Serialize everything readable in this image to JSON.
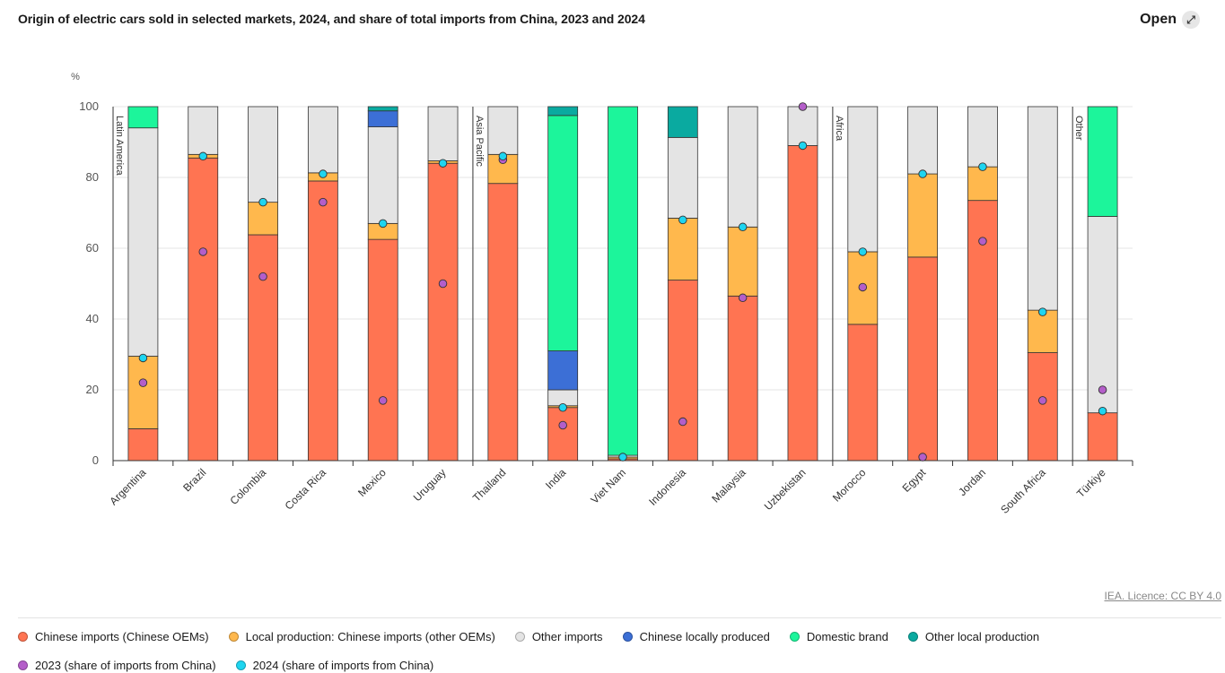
{
  "title": "Origin of electric cars sold in selected markets, 2024, and share of total imports from China, 2023 and 2024",
  "open_label": "Open",
  "open_icon": "expand-icon",
  "licence": "IEA. Licence: CC BY 4.0",
  "legend": [
    {
      "label": "Chinese imports (Chinese OEMs)",
      "color": "#ff7452"
    },
    {
      "label": "Local production: Chinese imports (other OEMs)",
      "color": "#ffb84d"
    },
    {
      "label": "Other imports",
      "color": "#e4e4e4"
    },
    {
      "label": "Chinese locally produced",
      "color": "#3c6fd6"
    },
    {
      "label": "Domestic brand",
      "color": "#1cf59b"
    },
    {
      "label": "Other local production",
      "color": "#0aaaa0"
    },
    {
      "label": "2023 (share of imports from China)",
      "color": "#b45ec9"
    },
    {
      "label": "2024 (share of imports from China)",
      "color": "#1ed5f0"
    }
  ],
  "chart_data": {
    "type": "bar",
    "stacked": true,
    "ylabel": "%",
    "ylim": [
      0,
      100
    ],
    "yticks": [
      0,
      20,
      40,
      60,
      80,
      100
    ],
    "grid": true,
    "groups": [
      {
        "label": "Latin America",
        "start": 0
      },
      {
        "label": "Asia Pacific",
        "start": 6
      },
      {
        "label": "Africa",
        "start": 12
      },
      {
        "label": "Other",
        "start": 16
      }
    ],
    "categories": [
      "Argentina",
      "Brazil",
      "Colombia",
      "Costa Rica",
      "Mexico",
      "Uruguay",
      "Thailand",
      "India",
      "Viet Nam",
      "Indonesia",
      "Malaysia",
      "Uzbekistan",
      "Morocco",
      "Egypt",
      "Jordan",
      "South Africa",
      "Türkiye"
    ],
    "series": [
      {
        "name": "Chinese imports (Chinese OEMs)",
        "values": [
          9,
          85.5,
          63.8,
          79,
          62.5,
          84,
          78.3,
          15,
          0.5,
          51,
          46.5,
          89,
          38.5,
          57.5,
          73.5,
          30.5,
          13.5
        ]
      },
      {
        "name": "Local production: Chinese imports (other OEMs)",
        "values": [
          20.5,
          1,
          9.2,
          2.3,
          4.5,
          0.7,
          8.2,
          0.5,
          0.5,
          17.5,
          19.5,
          0,
          20.5,
          23.5,
          9.5,
          12,
          0
        ]
      },
      {
        "name": "Other imports",
        "values": [
          64.5,
          13.5,
          27,
          18.7,
          27.3,
          15.3,
          13.5,
          4.5,
          0.5,
          22.8,
          34,
          11,
          41,
          19,
          17,
          57.5,
          55.5
        ]
      },
      {
        "name": "Chinese locally produced",
        "values": [
          0,
          0,
          0,
          0,
          4.5,
          0,
          0,
          11,
          0,
          0,
          0,
          0,
          0,
          0,
          0,
          0,
          0
        ]
      },
      {
        "name": "Domestic brand",
        "values": [
          6,
          0,
          0,
          0,
          0,
          0,
          0,
          66.5,
          98.5,
          0,
          0,
          0,
          0,
          0,
          0,
          0,
          31
        ]
      },
      {
        "name": "Other local production",
        "values": [
          0,
          0,
          0,
          0,
          1.2,
          0,
          0,
          2.5,
          0,
          8.7,
          0,
          0,
          0,
          0,
          0,
          0,
          0
        ]
      }
    ],
    "markers": [
      {
        "name": "2023 (share of imports from China)",
        "values": [
          22,
          59,
          52,
          73,
          17,
          50,
          85,
          10,
          null,
          11,
          46,
          100,
          49,
          1,
          62,
          17,
          20
        ]
      },
      {
        "name": "2024 (share of imports from China)",
        "values": [
          29,
          86,
          73,
          81,
          67,
          84,
          86,
          15,
          1,
          68,
          66,
          89,
          59,
          81,
          83,
          42,
          14
        ]
      }
    ]
  }
}
